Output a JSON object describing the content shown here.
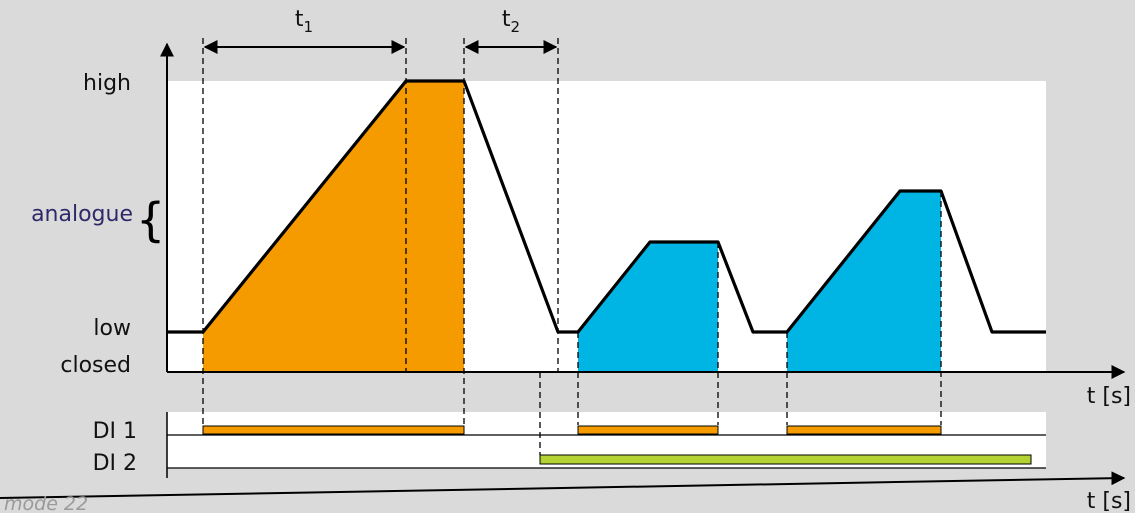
{
  "labels": {
    "high": "high",
    "analogue": "analogue",
    "low": "low",
    "closed": "closed",
    "t_axis_upper": "t [s]",
    "t_axis_lower": "t [s]",
    "di1": "DI 1",
    "di2": "DI 2",
    "t1_base": "t",
    "t1_sub": "1",
    "t2_base": "t",
    "t2_sub": "2",
    "mode": "mode 22"
  },
  "colors": {
    "background": "#dadada",
    "plot_area": "#ffffff",
    "orange": "#f59b00",
    "blue": "#00b4e4",
    "green": "#b4d231",
    "analogue_text": "#2e2a6a",
    "line": "#000000"
  }
}
